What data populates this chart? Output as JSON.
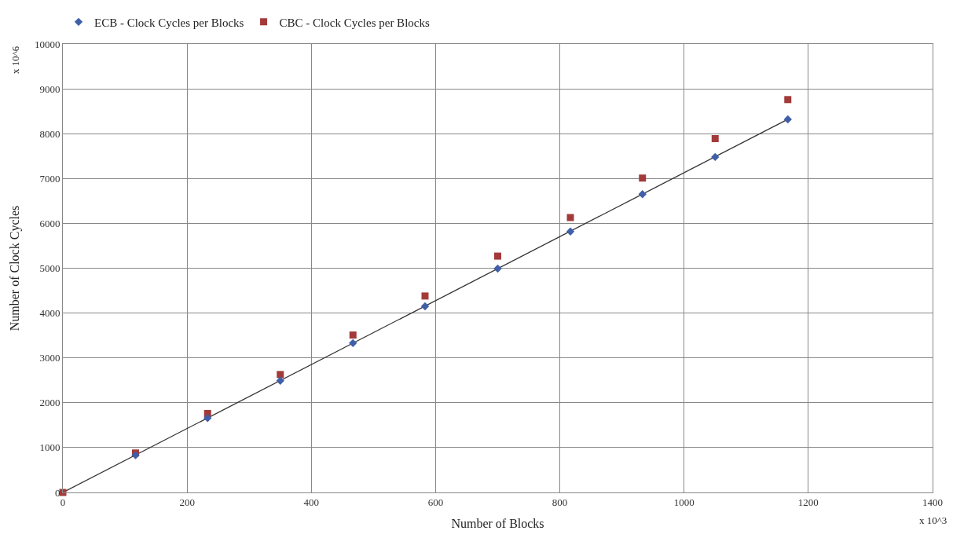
{
  "chart_data": {
    "type": "scatter",
    "xlabel": "Number of Blocks",
    "ylabel": "Number of Clock Cycles",
    "annotations": [
      "x 10^6",
      "x 10^3"
    ],
    "series": [
      {
        "name": "ECB - Clock Cycles per Blocks",
        "color": "#3f5fa8",
        "marker": "diamond",
        "x": [
          117,
          233,
          350,
          467,
          583,
          700,
          817,
          933,
          1050,
          1167
        ],
        "values": [
          830,
          1660,
          2490,
          3330,
          4150,
          4990,
          5820,
          6650,
          7480,
          8320
        ]
      },
      {
        "name": "CBC - Clock Cycles per Blocks",
        "color": "#a33a3a",
        "marker": "square",
        "x": [
          0,
          117,
          233,
          350,
          467,
          583,
          700,
          817,
          933,
          1050,
          1167
        ],
        "values": [
          0,
          880,
          1760,
          2630,
          3510,
          4380,
          5270,
          6130,
          7010,
          7890,
          8760
        ]
      },
      {
        "type": "line",
        "color": "#333333",
        "marker": "none",
        "line_style": "solid",
        "x": [
          0,
          1167
        ],
        "values": [
          0,
          8320
        ]
      }
    ],
    "xlim": [
      0,
      1400
    ],
    "xticks": [
      0,
      200,
      400,
      600,
      800,
      1000,
      1200,
      1400
    ],
    "ylim": [
      0,
      10000
    ],
    "yticks": [
      0,
      1000,
      2000,
      3000,
      4000,
      5000,
      6000,
      7000,
      8000,
      9000,
      10000
    ],
    "grid": true,
    "legend": "top left"
  }
}
